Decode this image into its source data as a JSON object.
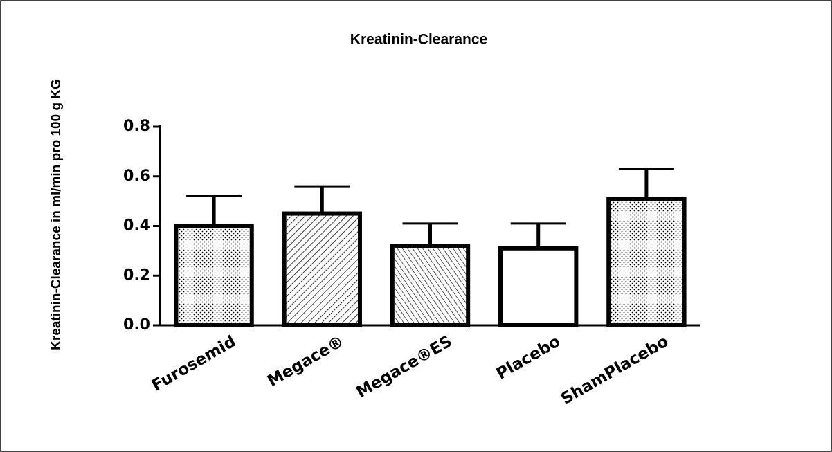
{
  "chart_data": {
    "type": "bar",
    "title": "Kreatinin-Clearance",
    "y_label": "Kreatinin-Clearance in ml/min pro 100 g KG",
    "categories": [
      "Furosemid",
      "Megace®",
      "Megace®ES",
      "Placebo",
      "ShamPlacebo"
    ],
    "values": [
      0.4,
      0.45,
      0.32,
      0.31,
      0.51
    ],
    "errors": [
      0.12,
      0.11,
      0.09,
      0.1,
      0.12
    ],
    "patterns": [
      "dots",
      "hatch",
      "hatch-reverse",
      "none",
      "dots"
    ],
    "color": "#000000",
    "ylim": [
      0,
      0.8
    ],
    "yticks": [
      {
        "value": 0,
        "label": "0.0"
      },
      0.2,
      0.4,
      0.6,
      0.8
    ],
    "grid": false
  }
}
